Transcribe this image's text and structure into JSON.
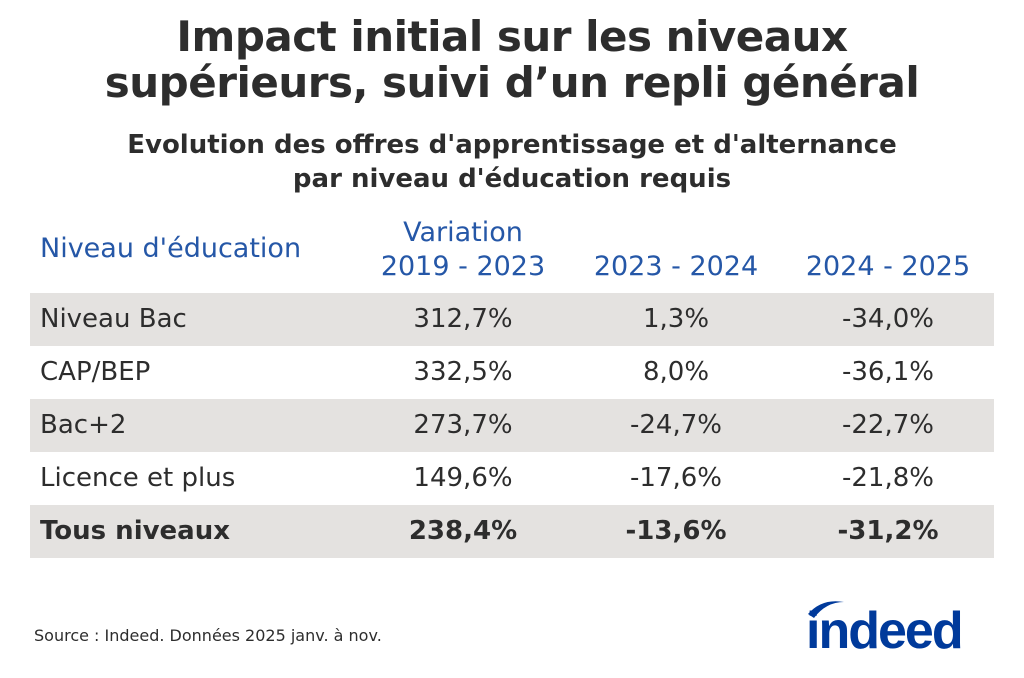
{
  "title": [
    "Impact initial sur les niveaux",
    "supérieurs, suivi d’un repli général"
  ],
  "subtitle": [
    "Evolution des offres d'apprentissage et d'alternance",
    "par niveau d'éducation requis"
  ],
  "chart_data": {
    "type": "table",
    "columns": [
      "Niveau d'éducation",
      "Variation 2019 - 2023",
      "2023 - 2024",
      "2024 - 2025"
    ],
    "header_lines": {
      "col0": "Niveau d'éducation",
      "col1_top": "Variation",
      "col1_bottom": "2019 - 2023",
      "col2": "2023 - 2024",
      "col3": "2024 - 2025"
    },
    "rows": [
      {
        "label": "Niveau Bac",
        "values": [
          "312,7%",
          "1,3%",
          "-34,0%"
        ],
        "bold": false
      },
      {
        "label": "CAP/BEP",
        "values": [
          "332,5%",
          "8,0%",
          "-36,1%"
        ],
        "bold": false
      },
      {
        "label": "Bac+2",
        "values": [
          "273,7%",
          "-24,7%",
          "-22,7%"
        ],
        "bold": false
      },
      {
        "label": "Licence et plus",
        "values": [
          "149,6%",
          "-17,6%",
          "-21,8%"
        ],
        "bold": false
      },
      {
        "label": "Tous niveaux",
        "values": [
          "238,4%",
          "-13,6%",
          "-31,2%"
        ],
        "bold": true
      }
    ]
  },
  "source": "Source : Indeed. Données 2025 janv. à nov.",
  "logo": "indeed",
  "colors": {
    "header": "#2557a7",
    "band": "#e4e2e0",
    "text": "#2d2d2d",
    "logo": "#003a9b"
  }
}
